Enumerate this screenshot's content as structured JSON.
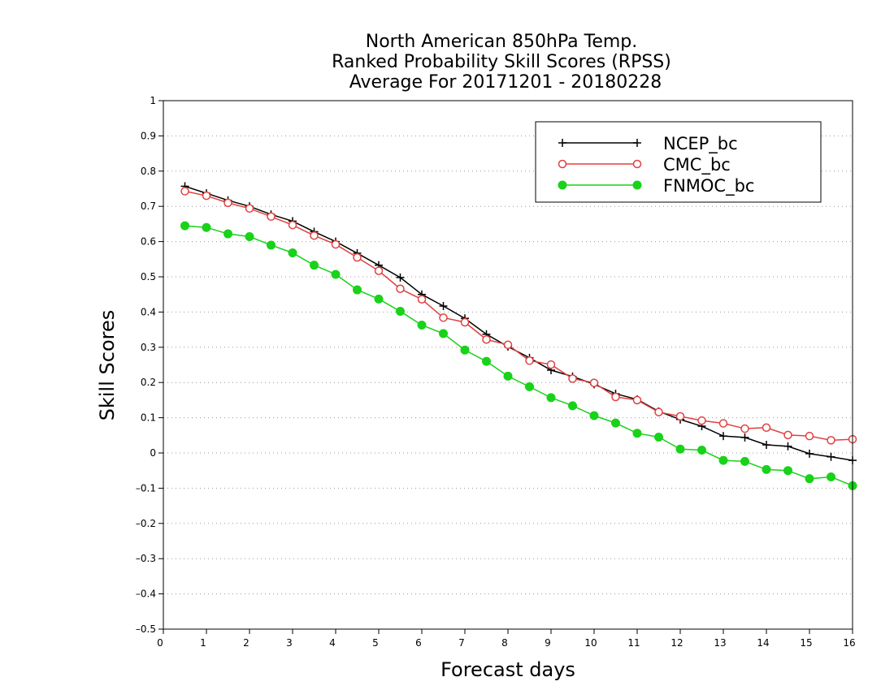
{
  "chart_data": {
    "type": "line",
    "title_lines": [
      "North American 850hPa Temp.",
      "Ranked Probability Skill Scores (RPSS)",
      "Average For 20171201 - 20180228"
    ],
    "xlabel": "Forecast days",
    "ylabel": "Skill Scores",
    "xlim": [
      0,
      16
    ],
    "ylim": [
      -0.5,
      1
    ],
    "xticks": [
      0,
      1,
      2,
      3,
      4,
      5,
      6,
      7,
      8,
      9,
      10,
      11,
      12,
      13,
      14,
      15,
      16
    ],
    "yticks": [
      -0.5,
      -0.4,
      -0.3,
      -0.2,
      -0.1,
      0,
      0.1,
      0.2,
      0.3,
      0.4,
      0.5,
      0.6,
      0.7,
      0.8,
      0.9,
      1
    ],
    "ytick_labels": [
      "–0.5",
      "–0.4",
      "–0.3",
      "–0.2",
      "–0.1",
      "0",
      "0.1",
      "0.2",
      "0.3",
      "0.4",
      "0.5",
      "0.6",
      "0.7",
      "0.8",
      "0.9",
      "1"
    ],
    "grid": "horizontal-dotted",
    "legend_position": "top-right",
    "x": [
      0.5,
      1,
      1.5,
      2,
      2.5,
      3,
      3.5,
      4,
      4.5,
      5,
      5.5,
      6,
      6.5,
      7,
      7.5,
      8,
      8.5,
      9,
      9.5,
      10,
      10.5,
      11,
      11.5,
      12,
      12.5,
      13,
      13.5,
      14,
      14.5,
      15,
      15.5,
      16
    ],
    "series": [
      {
        "name": "NCEP_bc",
        "color": "#000000",
        "marker": "plus",
        "values": [
          0.757,
          0.737,
          0.717,
          0.7,
          0.677,
          0.658,
          0.628,
          0.6,
          0.567,
          0.533,
          0.498,
          0.45,
          0.417,
          0.382,
          0.337,
          0.302,
          0.27,
          0.235,
          0.217,
          0.195,
          0.168,
          0.152,
          0.118,
          0.095,
          0.076,
          0.048,
          0.044,
          0.023,
          0.019,
          -0.002,
          -0.011,
          -0.021
        ]
      },
      {
        "name": "CMC_bc",
        "color": "#e04040",
        "marker": "open-circle",
        "values": [
          0.743,
          0.73,
          0.71,
          0.694,
          0.671,
          0.647,
          0.617,
          0.592,
          0.555,
          0.517,
          0.466,
          0.436,
          0.384,
          0.371,
          0.322,
          0.307,
          0.262,
          0.251,
          0.211,
          0.199,
          0.159,
          0.15,
          0.116,
          0.104,
          0.092,
          0.084,
          0.069,
          0.072,
          0.051,
          0.048,
          0.036,
          0.039
        ]
      },
      {
        "name": "FNMOC_bc",
        "color": "#19d219",
        "marker": "filled-circle",
        "values": [
          0.645,
          0.64,
          0.622,
          0.614,
          0.59,
          0.568,
          0.533,
          0.507,
          0.463,
          0.437,
          0.402,
          0.363,
          0.339,
          0.292,
          0.26,
          0.218,
          0.188,
          0.157,
          0.134,
          0.106,
          0.085,
          0.056,
          0.045,
          0.011,
          0.008,
          -0.021,
          -0.024,
          -0.047,
          -0.05,
          -0.073,
          -0.068,
          -0.093
        ]
      }
    ]
  }
}
